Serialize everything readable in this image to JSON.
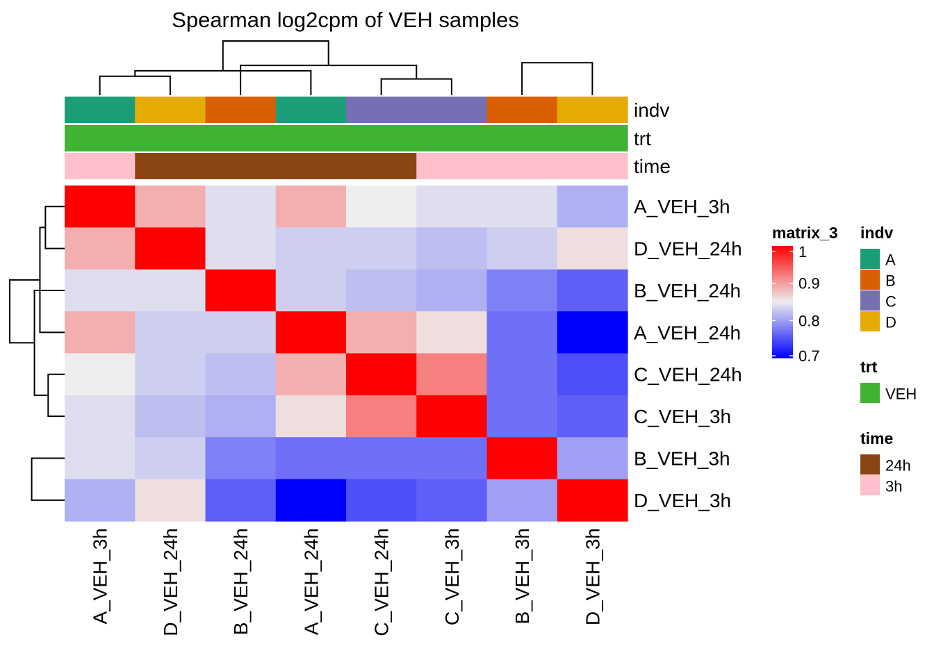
{
  "chart_data": {
    "type": "heatmap",
    "title": "Spearman log2cpm of VEH samples",
    "rows": [
      "A_VEH_3h",
      "D_VEH_24h",
      "B_VEH_24h",
      "A_VEH_24h",
      "C_VEH_24h",
      "C_VEH_3h",
      "B_VEH_3h",
      "D_VEH_3h"
    ],
    "columns": [
      "A_VEH_3h",
      "D_VEH_24h",
      "B_VEH_24h",
      "A_VEH_24h",
      "C_VEH_24h",
      "C_VEH_3h",
      "B_VEH_3h",
      "D_VEH_3h"
    ],
    "values": [
      [
        1.0,
        0.89,
        0.84,
        0.89,
        0.85,
        0.84,
        0.84,
        0.81
      ],
      [
        0.89,
        1.0,
        0.84,
        0.83,
        0.83,
        0.82,
        0.83,
        0.86
      ],
      [
        0.84,
        0.84,
        1.0,
        0.83,
        0.82,
        0.81,
        0.78,
        0.76
      ],
      [
        0.89,
        0.83,
        0.83,
        1.0,
        0.89,
        0.86,
        0.77,
        0.7
      ],
      [
        0.85,
        0.83,
        0.82,
        0.89,
        1.0,
        0.92,
        0.77,
        0.75
      ],
      [
        0.84,
        0.82,
        0.81,
        0.86,
        0.92,
        1.0,
        0.77,
        0.76
      ],
      [
        0.84,
        0.83,
        0.78,
        0.77,
        0.77,
        0.77,
        1.0,
        0.8
      ],
      [
        0.81,
        0.86,
        0.76,
        0.7,
        0.75,
        0.76,
        0.8,
        1.0
      ]
    ],
    "color_scale": {
      "name": "matrix_3",
      "breaks": [
        0.7,
        0.85,
        1.0
      ],
      "colors": [
        "#0000ff",
        "#eeeeee",
        "#ff0000"
      ],
      "ticks": [
        1,
        0.9,
        0.8,
        0.7
      ],
      "tick_labels": [
        "1",
        "0.9",
        "0.8",
        "0.7"
      ]
    },
    "annotations": [
      {
        "name": "indv",
        "values": [
          "A",
          "D",
          "B",
          "A",
          "C",
          "C",
          "B",
          "D"
        ],
        "legend": [
          {
            "label": "A",
            "color": "#1b9e77"
          },
          {
            "label": "B",
            "color": "#d95f02"
          },
          {
            "label": "C",
            "color": "#7570b3"
          },
          {
            "label": "D",
            "color": "#e6ab02"
          }
        ]
      },
      {
        "name": "trt",
        "values": [
          "VEH",
          "VEH",
          "VEH",
          "VEH",
          "VEH",
          "VEH",
          "VEH",
          "VEH"
        ],
        "legend": [
          {
            "label": "VEH",
            "color": "#41b334"
          }
        ]
      },
      {
        "name": "time",
        "values": [
          "3h",
          "24h",
          "24h",
          "24h",
          "24h",
          "3h",
          "3h",
          "3h"
        ],
        "legend": [
          {
            "label": "24h",
            "color": "#8b4513"
          },
          {
            "label": "3h",
            "color": "#ffc0cb"
          }
        ]
      }
    ],
    "column_dendrogram": [
      [
        0,
        1,
        0.35
      ],
      [
        4,
        5,
        0.3
      ],
      [
        3,
        8,
        0.45
      ],
      [
        2,
        9,
        0.55
      ],
      [
        6,
        7,
        0.6
      ],
      [
        10,
        11,
        1.0
      ]
    ],
    "row_dendrogram": [
      [
        0,
        1,
        0.35
      ],
      [
        4,
        5,
        0.3
      ],
      [
        3,
        8,
        0.45
      ],
      [
        2,
        9,
        0.55
      ],
      [
        6,
        7,
        0.6
      ],
      [
        10,
        11,
        1.0
      ]
    ]
  }
}
